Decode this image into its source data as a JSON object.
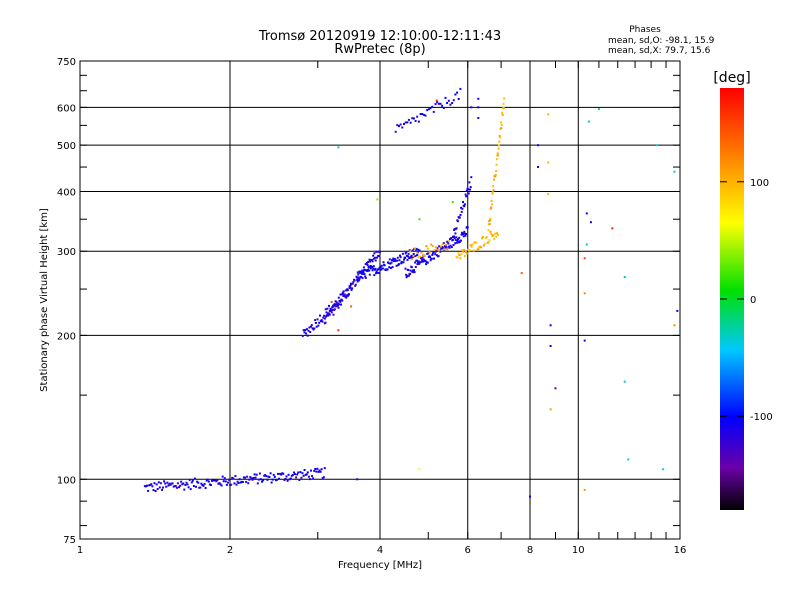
{
  "chart_data": {
    "type": "scatter",
    "title": "Tromsø 20120919 12:10:00-12:11:43",
    "subtitle": "RwPretec (8p)",
    "stats": {
      "heading": "Phases",
      "line1": "mean, sd,O: -98.1, 15.9",
      "line2": "mean, sd,X:  79.7, 15.6"
    },
    "xlabel": "Frequency [MHz]",
    "ylabel": "Stationary phase Virtual Height [km]",
    "x_scale": "log",
    "y_scale": "log",
    "xlim": [
      1,
      16
    ],
    "ylim": [
      75,
      750
    ],
    "x_ticks": [
      1,
      2,
      4,
      6,
      8,
      10,
      16
    ],
    "x_tick_labels": [
      "1",
      "2",
      "4",
      "6",
      "8",
      "10",
      "16"
    ],
    "y_ticks": [
      75,
      100,
      200,
      300,
      400,
      500,
      600,
      750
    ],
    "y_tick_labels": [
      "75",
      "100",
      "200",
      "300",
      "400",
      "500",
      "600",
      "750"
    ],
    "grid": true,
    "colorbar": {
      "label": "[deg]",
      "range": [
        -180,
        180
      ],
      "ticks": [
        100,
        0,
        -100
      ],
      "tick_labels": [
        "100",
        "0",
        "-100"
      ]
    },
    "segments": [
      {
        "x1": 1.35,
        "x2": 3.1,
        "y1": 96,
        "y2": 103,
        "phase": -110,
        "n": 170
      },
      {
        "x1": 2.8,
        "x2": 3.5,
        "y1": 200,
        "y2": 250,
        "phase": -110,
        "n": 60
      },
      {
        "x1": 3.1,
        "x2": 4.0,
        "y1": 215,
        "y2": 300,
        "phase": -115,
        "n": 90
      },
      {
        "x1": 3.6,
        "x2": 4.8,
        "y1": 265,
        "y2": 300,
        "phase": -105,
        "n": 110
      },
      {
        "x1": 4.5,
        "x2": 6.0,
        "y1": 270,
        "y2": 330,
        "phase": -110,
        "n": 110
      },
      {
        "x1": 5.6,
        "x2": 6.1,
        "y1": 320,
        "y2": 420,
        "phase": -110,
        "n": 30
      },
      {
        "x1": 4.6,
        "x2": 5.5,
        "y1": 295,
        "y2": 310,
        "phase": 105,
        "n": 25
      },
      {
        "x1": 5.7,
        "x2": 6.9,
        "y1": 290,
        "y2": 330,
        "phase": 100,
        "n": 45
      },
      {
        "x1": 6.6,
        "x2": 7.1,
        "y1": 330,
        "y2": 620,
        "phase": 100,
        "n": 40
      },
      {
        "x1": 4.3,
        "x2": 5.8,
        "y1": 535,
        "y2": 640,
        "phase": -110,
        "n": 40
      }
    ],
    "points": [
      {
        "x": 6.3,
        "y": 625,
        "phase": -110
      },
      {
        "x": 6.3,
        "y": 600,
        "phase": -110
      },
      {
        "x": 6.3,
        "y": 570,
        "phase": -110
      },
      {
        "x": 6.1,
        "y": 600,
        "phase": -110
      },
      {
        "x": 3.2,
        "y": 235,
        "phase": 150
      },
      {
        "x": 3.3,
        "y": 205,
        "phase": 160
      },
      {
        "x": 3.5,
        "y": 230,
        "phase": 140
      },
      {
        "x": 5.2,
        "y": 620,
        "phase": 160
      },
      {
        "x": 4.8,
        "y": 350,
        "phase": 20
      },
      {
        "x": 5.6,
        "y": 380,
        "phase": 20
      },
      {
        "x": 3.95,
        "y": 385,
        "phase": 40
      },
      {
        "x": 4.8,
        "y": 105,
        "phase": 60
      },
      {
        "x": 3.6,
        "y": 100,
        "phase": -110
      },
      {
        "x": 7.7,
        "y": 270,
        "phase": 140
      },
      {
        "x": 8.3,
        "y": 500,
        "phase": -110
      },
      {
        "x": 8.3,
        "y": 450,
        "phase": -110
      },
      {
        "x": 8.7,
        "y": 580,
        "phase": 100
      },
      {
        "x": 8.7,
        "y": 460,
        "phase": 100
      },
      {
        "x": 8.7,
        "y": 395,
        "phase": 100
      },
      {
        "x": 8.8,
        "y": 210,
        "phase": -110
      },
      {
        "x": 8.8,
        "y": 190,
        "phase": -110
      },
      {
        "x": 8.8,
        "y": 140,
        "phase": 110
      },
      {
        "x": 9.0,
        "y": 155,
        "phase": -140
      },
      {
        "x": 8.0,
        "y": 92,
        "phase": -110
      },
      {
        "x": 10.4,
        "y": 360,
        "phase": -110
      },
      {
        "x": 10.6,
        "y": 345,
        "phase": -110
      },
      {
        "x": 10.4,
        "y": 310,
        "phase": -40
      },
      {
        "x": 10.3,
        "y": 290,
        "phase": 150
      },
      {
        "x": 10.3,
        "y": 245,
        "phase": 120
      },
      {
        "x": 10.3,
        "y": 195,
        "phase": -110
      },
      {
        "x": 10.3,
        "y": 95,
        "phase": 110
      },
      {
        "x": 11.0,
        "y": 595,
        "phase": -20
      },
      {
        "x": 10.5,
        "y": 560,
        "phase": -20
      },
      {
        "x": 11.7,
        "y": 335,
        "phase": 160
      },
      {
        "x": 12.4,
        "y": 265,
        "phase": -30
      },
      {
        "x": 12.4,
        "y": 160,
        "phase": -40
      },
      {
        "x": 12.6,
        "y": 110,
        "phase": -40
      },
      {
        "x": 14.4,
        "y": 500,
        "phase": -40
      },
      {
        "x": 14.8,
        "y": 105,
        "phase": -40
      },
      {
        "x": 15.6,
        "y": 440,
        "phase": -30
      },
      {
        "x": 15.6,
        "y": 210,
        "phase": 120
      },
      {
        "x": 15.8,
        "y": 225,
        "phase": -110
      },
      {
        "x": 3.3,
        "y": 495,
        "phase": -30
      }
    ]
  }
}
